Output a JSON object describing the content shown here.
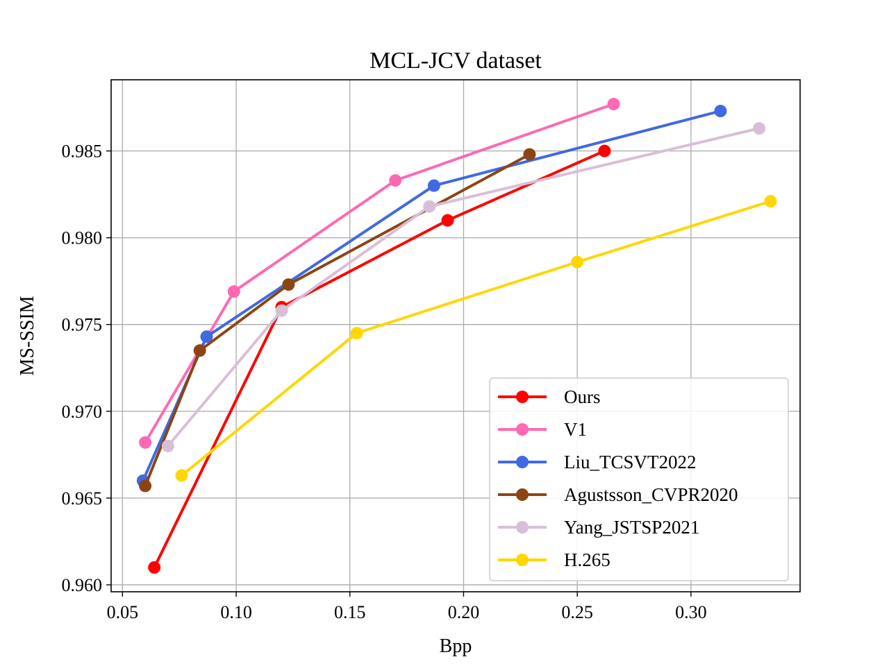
{
  "chart_data": {
    "type": "line",
    "title": "MCL-JCV dataset",
    "xlabel": "Bpp",
    "ylabel": "MS-SSIM",
    "xlim": [
      0.045,
      0.348
    ],
    "ylim": [
      0.9596,
      0.9891
    ],
    "xticks": [
      0.05,
      0.1,
      0.15,
      0.2,
      0.25,
      0.3
    ],
    "xtick_labels": [
      "0.05",
      "0.10",
      "0.15",
      "0.20",
      "0.25",
      "0.30"
    ],
    "yticks": [
      0.96,
      0.965,
      0.97,
      0.975,
      0.98,
      0.985
    ],
    "ytick_labels": [
      "0.960",
      "0.965",
      "0.970",
      "0.975",
      "0.980",
      "0.985"
    ],
    "grid": true,
    "legend_position": "lower-right",
    "series": [
      {
        "name": "Ours",
        "color": "#ff0000",
        "x": [
          0.064,
          0.12,
          0.193,
          0.262
        ],
        "y": [
          0.961,
          0.976,
          0.981,
          0.985
        ]
      },
      {
        "name": "V1",
        "color": "#ff69b4",
        "x": [
          0.06,
          0.099,
          0.17,
          0.266
        ],
        "y": [
          0.9682,
          0.9769,
          0.9833,
          0.9877
        ]
      },
      {
        "name": "Liu_TCSVT2022",
        "color": "#4169e1",
        "x": [
          0.059,
          0.087,
          0.187,
          0.313
        ],
        "y": [
          0.966,
          0.9743,
          0.983,
          0.9873
        ]
      },
      {
        "name": "Agustsson_CVPR2020",
        "color": "#8b4513",
        "x": [
          0.06,
          0.084,
          0.123,
          0.229
        ],
        "y": [
          0.9657,
          0.9735,
          0.9773,
          0.9848
        ]
      },
      {
        "name": "Yang_JSTSP2021",
        "color": "#d8bfd8",
        "x": [
          0.07,
          0.12,
          0.185,
          0.33
        ],
        "y": [
          0.968,
          0.9758,
          0.9818,
          0.9863
        ]
      },
      {
        "name": "H.265",
        "color": "#ffd700",
        "x": [
          0.076,
          0.153,
          0.25,
          0.335
        ],
        "y": [
          0.9663,
          0.9745,
          0.9786,
          0.9821
        ]
      }
    ]
  }
}
